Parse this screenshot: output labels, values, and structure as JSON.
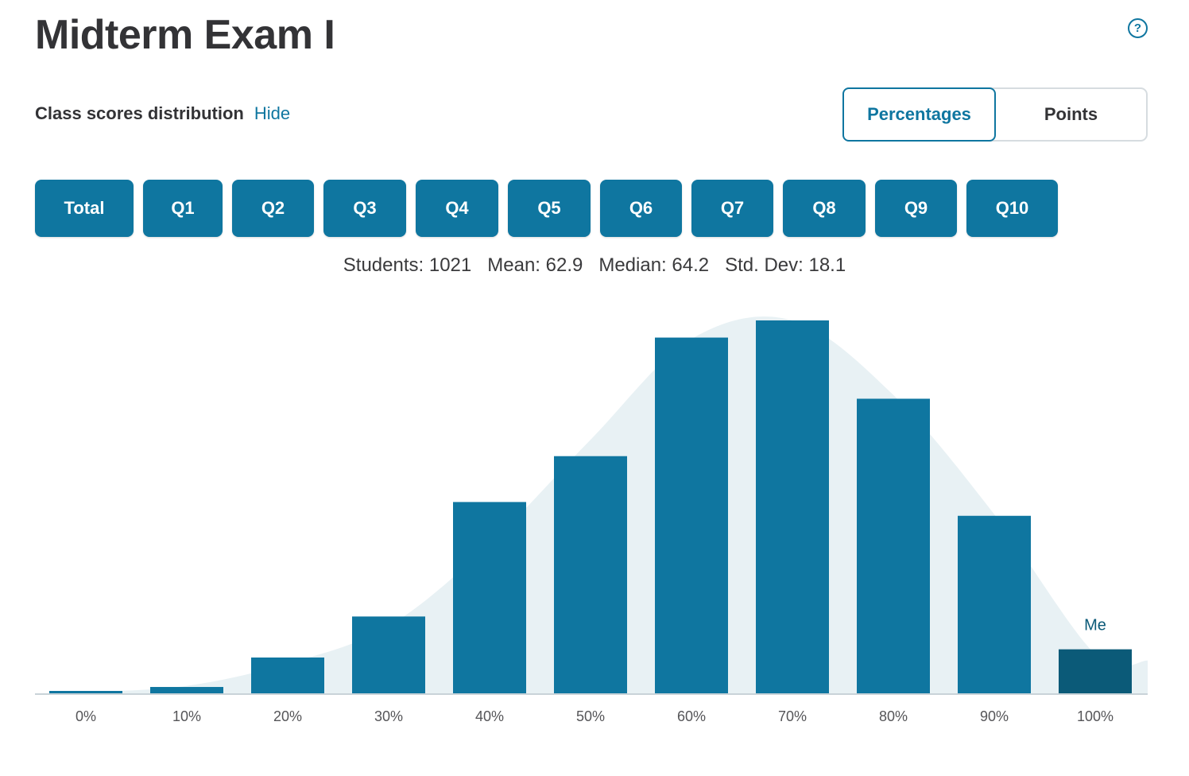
{
  "page": {
    "title": "Midterm Exam I",
    "help_icon": "question-circle-icon"
  },
  "distribution": {
    "label": "Class scores distribution",
    "hide_link": "Hide"
  },
  "view_toggle": {
    "options": [
      "Percentages",
      "Points"
    ],
    "selected": "Percentages"
  },
  "question_tabs": [
    "Total",
    "Q1",
    "Q2",
    "Q3",
    "Q4",
    "Q5",
    "Q6",
    "Q7",
    "Q8",
    "Q9",
    "Q10"
  ],
  "stats": {
    "students": "Students: 1021",
    "mean": "Mean: 62.9",
    "median": "Median: 64.2",
    "std_dev": "Std. Dev: 18.1"
  },
  "colors": {
    "accent": "#0f76a0",
    "me_bar": "#0b5a78",
    "curve_fill": "#e8f1f4",
    "axis": "#c9d3d8"
  },
  "chart_data": {
    "type": "bar",
    "categories": [
      "0%",
      "10%",
      "20%",
      "30%",
      "40%",
      "50%",
      "60%",
      "70%",
      "80%",
      "90%",
      "100%"
    ],
    "values": [
      0.3,
      1.7,
      9.6,
      20.6,
      51.3,
      63.6,
      95.4,
      100,
      79.0,
      47.6,
      11.8
    ],
    "ylim": [
      0,
      100
    ],
    "highlight": {
      "category": "100%",
      "label": "Me"
    },
    "curve": {
      "x": [
        0,
        10,
        20,
        30,
        40,
        50,
        60,
        70,
        80,
        90,
        100
      ],
      "y": [
        0.3,
        2.0,
        8.0,
        18.0,
        40.0,
        68.0,
        95.0,
        100.0,
        80.0,
        48.0,
        10.5
      ]
    },
    "grid": false,
    "legend": "none"
  }
}
